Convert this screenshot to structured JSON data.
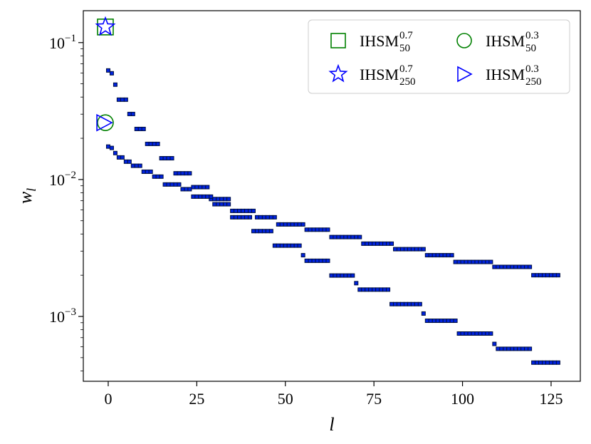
{
  "chart_data": {
    "type": "scatter",
    "xlabel": "l",
    "ylabel": "w",
    "ylabel_sub": "l",
    "xlim": [
      -7.03,
      133.25
    ],
    "ylim": [
      0.000336,
      0.171
    ],
    "log_y": true,
    "xticks": [
      0,
      25,
      50,
      75,
      100,
      125
    ],
    "yticks": [
      {
        "value": 0.001,
        "label": "10",
        "exponent": "−3"
      },
      {
        "value": 0.01,
        "label": "10",
        "exponent": "−2"
      },
      {
        "value": 0.1,
        "label": "10",
        "exponent": "−1"
      }
    ],
    "legend": "upper right",
    "series": [
      {
        "name": "IHSM",
        "sup": "0.7",
        "sub": "50",
        "color": "green",
        "marker": "square",
        "x": [
          -0.8
        ],
        "values": [
          0.13
        ]
      },
      {
        "name": "IHSM",
        "sup": "0.7",
        "sub": "250",
        "color": "blue",
        "marker": "star",
        "x": [
          -0.8
        ],
        "values": [
          0.13
        ]
      },
      {
        "name": "IHSM",
        "sup": "0.3",
        "sub": "50",
        "color": "green",
        "marker": "circle",
        "x": [
          -0.8
        ],
        "values": [
          0.026
        ]
      },
      {
        "name": "IHSM",
        "sup": "0.3",
        "sub": "250",
        "color": "blue",
        "marker": "triangle",
        "x": [
          -1.2
        ],
        "values": [
          0.026
        ]
      }
    ],
    "points": {
      "color": "#0022dd",
      "edgecolor": "#001040",
      "x": [
        0,
        1,
        2,
        3,
        4,
        5,
        6,
        7,
        8,
        9,
        10,
        11,
        12,
        13,
        14,
        15,
        16,
        17,
        18,
        19,
        20,
        21,
        22,
        23,
        24,
        25,
        26,
        27,
        28,
        29,
        30,
        31,
        32,
        33,
        34,
        35,
        36,
        37,
        38,
        39,
        40,
        41,
        42,
        43,
        44,
        45,
        46,
        47,
        48,
        49,
        50,
        51,
        52,
        53,
        54,
        55,
        56,
        57,
        58,
        59,
        60,
        61,
        62,
        63,
        64,
        65,
        66,
        67,
        68,
        69,
        70,
        71,
        72,
        73,
        74,
        75,
        76,
        77,
        78,
        79,
        80,
        81,
        82,
        83,
        84,
        85,
        86,
        87,
        88,
        89,
        90,
        91,
        92,
        93,
        94,
        95,
        96,
        97,
        98,
        99,
        100,
        101,
        102,
        103,
        104,
        105,
        106,
        107,
        108,
        109,
        110,
        111,
        112,
        113,
        114,
        115,
        116,
        117,
        118,
        119,
        120,
        121,
        122,
        123,
        124,
        125,
        126,
        127
      ],
      "series": [
        {
          "values": [
            0.0626,
            0.0597,
            0.0493,
            0.0383,
            0.0383,
            0.0383,
            0.0301,
            0.0301,
            0.0234,
            0.0234,
            0.0234,
            0.0182,
            0.0182,
            0.0182,
            0.0182,
            0.0143,
            0.0143,
            0.0143,
            0.0143,
            0.0111,
            0.0111,
            0.0111,
            0.0111,
            0.0111,
            0.0088,
            0.0088,
            0.0088,
            0.0088,
            0.0088,
            0.0072,
            0.0072,
            0.0072,
            0.0072,
            0.0072,
            0.0072,
            0.0059,
            0.0059,
            0.0059,
            0.0059,
            0.0059,
            0.0059,
            0.0059,
            0.0053,
            0.0053,
            0.0053,
            0.0053,
            0.0053,
            0.0053,
            0.0047,
            0.0047,
            0.0047,
            0.0047,
            0.0047,
            0.0047,
            0.0047,
            0.0047,
            0.0043,
            0.0043,
            0.0043,
            0.0043,
            0.0043,
            0.0043,
            0.0043,
            0.0038,
            0.0038,
            0.0038,
            0.0038,
            0.0038,
            0.0038,
            0.0038,
            0.0038,
            0.0038,
            0.0034,
            0.0034,
            0.0034,
            0.0034,
            0.0034,
            0.0034,
            0.0034,
            0.0034,
            0.0034,
            0.0031,
            0.0031,
            0.0031,
            0.0031,
            0.0031,
            0.0031,
            0.0031,
            0.0031,
            0.0031,
            0.0028,
            0.0028,
            0.0028,
            0.0028,
            0.0028,
            0.0028,
            0.0028,
            0.0028,
            0.0025,
            0.0025,
            0.0025,
            0.0025,
            0.0025,
            0.0025,
            0.0025,
            0.0025,
            0.0025,
            0.0025,
            0.0025,
            0.0023,
            0.0023,
            0.0023,
            0.0023,
            0.0023,
            0.0023,
            0.0023,
            0.0023,
            0.0023,
            0.0023,
            0.0023,
            0.002,
            0.002,
            0.002,
            0.002,
            0.002,
            0.002,
            0.002,
            0.002
          ]
        },
        {
          "values": [
            0.0174,
            0.017,
            0.0156,
            0.0145,
            0.0145,
            0.0135,
            0.0135,
            0.0126,
            0.0126,
            0.0126,
            0.0114,
            0.0114,
            0.0114,
            0.0105,
            0.0105,
            0.0105,
            0.0092,
            0.0092,
            0.0092,
            0.0092,
            0.0092,
            0.0085,
            0.0085,
            0.0085,
            0.0075,
            0.0075,
            0.0075,
            0.0075,
            0.0075,
            0.0075,
            0.0066,
            0.0066,
            0.0066,
            0.0066,
            0.0066,
            0.0053,
            0.0053,
            0.0053,
            0.0053,
            0.0053,
            0.0053,
            0.0042,
            0.0042,
            0.0042,
            0.0042,
            0.0042,
            0.0042,
            0.00329,
            0.00329,
            0.00329,
            0.00329,
            0.00329,
            0.00329,
            0.00329,
            0.00329,
            0.0028,
            0.00255,
            0.00255,
            0.00255,
            0.00255,
            0.00255,
            0.00255,
            0.00255,
            0.00199,
            0.00199,
            0.00199,
            0.00199,
            0.00199,
            0.00199,
            0.00199,
            0.00175,
            0.00157,
            0.00157,
            0.00157,
            0.00157,
            0.00157,
            0.00157,
            0.00157,
            0.00157,
            0.00157,
            0.00123,
            0.00123,
            0.00123,
            0.00123,
            0.00123,
            0.00123,
            0.00123,
            0.00123,
            0.00123,
            0.00105,
            0.00093,
            0.00093,
            0.00093,
            0.00093,
            0.00093,
            0.00093,
            0.00093,
            0.00093,
            0.00093,
            0.00075,
            0.00075,
            0.00075,
            0.00075,
            0.00075,
            0.00075,
            0.00075,
            0.00075,
            0.00075,
            0.00075,
            0.00063,
            0.00058,
            0.00058,
            0.00058,
            0.00058,
            0.00058,
            0.00058,
            0.00058,
            0.00058,
            0.00058,
            0.00058,
            0.00046,
            0.00046,
            0.00046,
            0.00046,
            0.00046,
            0.00046,
            0.00046,
            0.00046
          ]
        }
      ]
    }
  }
}
